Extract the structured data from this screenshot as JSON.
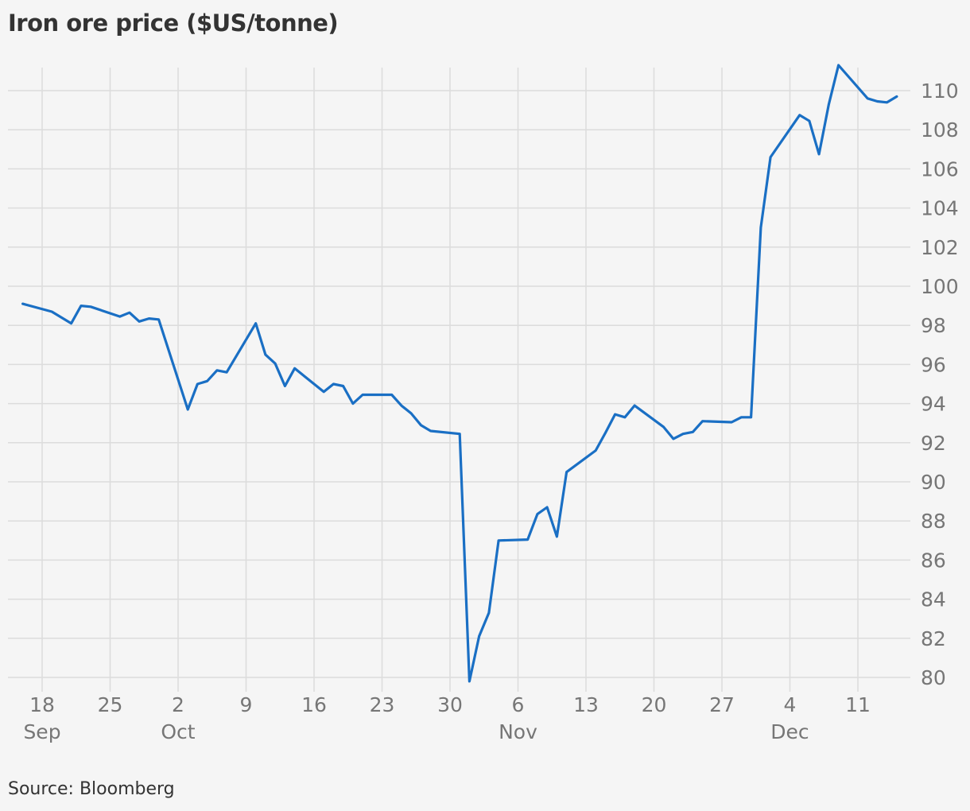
{
  "title": "Iron ore price ($US/tonne)",
  "source": "Source: Bloomberg",
  "colors": {
    "line": "#1a6fc4",
    "grid": "#dcdcdc",
    "axis_text": "#767676",
    "background": "#f5f5f5"
  },
  "chart_data": {
    "type": "line",
    "title": "Iron ore price ($US/tonne)",
    "xlabel": "",
    "ylabel": "",
    "ylim": [
      80,
      111
    ],
    "y_ticks": [
      80,
      82,
      84,
      86,
      88,
      90,
      92,
      94,
      96,
      98,
      100,
      102,
      104,
      106,
      108,
      110
    ],
    "x_ticks": [
      {
        "date": "2018-09-18",
        "day": "18",
        "month": "Sep"
      },
      {
        "date": "2018-09-25",
        "day": "25",
        "month": ""
      },
      {
        "date": "2018-10-02",
        "day": "2",
        "month": "Oct"
      },
      {
        "date": "2018-10-09",
        "day": "9",
        "month": ""
      },
      {
        "date": "2018-10-16",
        "day": "16",
        "month": ""
      },
      {
        "date": "2018-10-23",
        "day": "23",
        "month": ""
      },
      {
        "date": "2018-10-30",
        "day": "30",
        "month": ""
      },
      {
        "date": "2018-11-06",
        "day": "6",
        "month": "Nov"
      },
      {
        "date": "2018-11-13",
        "day": "13",
        "month": ""
      },
      {
        "date": "2018-11-20",
        "day": "20",
        "month": ""
      },
      {
        "date": "2018-11-27",
        "day": "27",
        "month": ""
      },
      {
        "date": "2018-12-04",
        "day": "4",
        "month": "Dec"
      },
      {
        "date": "2018-12-11",
        "day": "11",
        "month": ""
      }
    ],
    "grid": true,
    "y_axis_position": "right",
    "series": [
      {
        "points": [
          [
            "2018-09-16",
            99.1
          ],
          [
            "2018-09-19",
            98.7
          ],
          [
            "2018-09-20",
            98.4
          ],
          [
            "2018-09-21",
            98.1
          ],
          [
            "2018-09-22",
            99.0
          ],
          [
            "2018-09-23",
            98.95
          ],
          [
            "2018-09-26",
            98.45
          ],
          [
            "2018-09-27",
            98.65
          ],
          [
            "2018-09-28",
            98.2
          ],
          [
            "2018-09-29",
            98.35
          ],
          [
            "2018-09-30",
            98.3
          ],
          [
            "2018-10-03",
            93.7
          ],
          [
            "2018-10-04",
            95.0
          ],
          [
            "2018-10-05",
            95.15
          ],
          [
            "2018-10-06",
            95.7
          ],
          [
            "2018-10-07",
            95.6
          ],
          [
            "2018-10-10",
            98.1
          ],
          [
            "2018-10-11",
            96.5
          ],
          [
            "2018-10-12",
            96.05
          ],
          [
            "2018-10-13",
            94.9
          ],
          [
            "2018-10-14",
            95.8
          ],
          [
            "2018-10-17",
            94.6
          ],
          [
            "2018-10-18",
            95.0
          ],
          [
            "2018-10-19",
            94.9
          ],
          [
            "2018-10-20",
            94.0
          ],
          [
            "2018-10-21",
            94.45
          ],
          [
            "2018-10-24",
            94.45
          ],
          [
            "2018-10-25",
            93.9
          ],
          [
            "2018-10-26",
            93.5
          ],
          [
            "2018-10-27",
            92.9
          ],
          [
            "2018-10-28",
            92.6
          ],
          [
            "2018-10-31",
            92.45
          ],
          [
            "2018-11-01",
            79.8
          ],
          [
            "2018-11-02",
            82.1
          ],
          [
            "2018-11-03",
            83.3
          ],
          [
            "2018-11-04",
            87.0
          ],
          [
            "2018-11-07",
            87.05
          ],
          [
            "2018-11-08",
            88.35
          ],
          [
            "2018-11-09",
            88.7
          ],
          [
            "2018-11-10",
            87.2
          ],
          [
            "2018-11-11",
            90.5
          ],
          [
            "2018-11-14",
            91.6
          ],
          [
            "2018-11-15",
            92.5
          ],
          [
            "2018-11-16",
            93.45
          ],
          [
            "2018-11-17",
            93.3
          ],
          [
            "2018-11-18",
            93.9
          ],
          [
            "2018-11-21",
            92.8
          ],
          [
            "2018-11-22",
            92.2
          ],
          [
            "2018-11-23",
            92.45
          ],
          [
            "2018-11-24",
            92.55
          ],
          [
            "2018-11-25",
            93.1
          ],
          [
            "2018-11-28",
            93.05
          ],
          [
            "2018-11-29",
            93.3
          ],
          [
            "2018-11-30",
            93.3
          ],
          [
            "2018-12-01",
            103.0
          ],
          [
            "2018-12-02",
            106.6
          ],
          [
            "2018-12-05",
            108.75
          ],
          [
            "2018-12-06",
            108.45
          ],
          [
            "2018-12-07",
            106.75
          ],
          [
            "2018-12-08",
            109.3
          ],
          [
            "2018-12-09",
            111.3
          ],
          [
            "2018-12-12",
            109.6
          ],
          [
            "2018-12-13",
            109.45
          ],
          [
            "2018-12-14",
            109.4
          ],
          [
            "2018-12-15",
            109.7
          ]
        ]
      }
    ]
  }
}
